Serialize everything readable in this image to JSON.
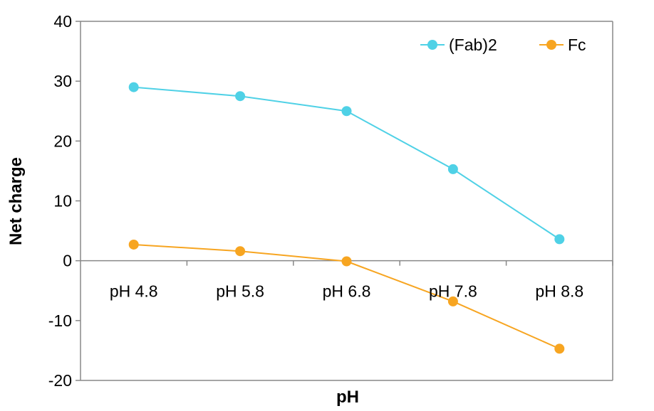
{
  "chart_data": {
    "type": "line",
    "title": "",
    "xlabel": "pH",
    "ylabel": "Net charge",
    "categories": [
      "pH 4.8",
      "pH 5.8",
      "pH 6.8",
      "pH 7.8",
      "pH 8.8"
    ],
    "ylim": [
      -20,
      40
    ],
    "yticks": [
      "-20",
      "-10",
      "0",
      "10",
      "20",
      "30",
      "40"
    ],
    "grid": false,
    "legend_position": "top-right",
    "series": [
      {
        "name": "(Fab)2",
        "color": "#4fd1e6",
        "values": [
          29,
          27.5,
          25,
          15.3,
          3.6
        ]
      },
      {
        "name": "Fc",
        "color": "#f7a521",
        "values": [
          2.7,
          1.6,
          -0.1,
          -6.8,
          -14.7
        ]
      }
    ]
  }
}
